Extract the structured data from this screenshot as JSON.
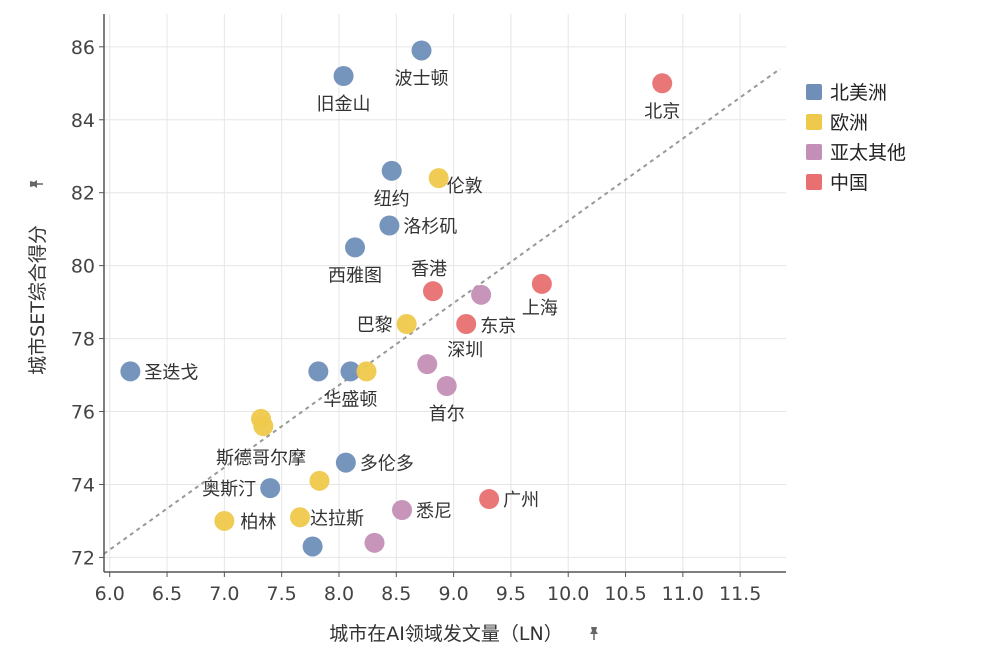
{
  "chart_data": {
    "type": "scatter",
    "xlabel": "城市在AI领域发文量（LN）",
    "ylabel": "城市SET综合得分",
    "xlim": [
      5.95,
      11.9
    ],
    "ylim": [
      71.6,
      86.9
    ],
    "x_ticks": [
      "6.0",
      "6.5",
      "7.0",
      "7.5",
      "8.0",
      "8.5",
      "9.0",
      "9.5",
      "10.0",
      "10.5",
      "11.0",
      "11.5"
    ],
    "x_tick_values": [
      6.0,
      6.5,
      7.0,
      7.5,
      8.0,
      8.5,
      9.0,
      9.5,
      10.0,
      10.5,
      11.0,
      11.5
    ],
    "y_ticks": [
      "72",
      "74",
      "76",
      "78",
      "80",
      "82",
      "84",
      "86"
    ],
    "y_tick_values": [
      72,
      74,
      76,
      78,
      80,
      82,
      84,
      86
    ],
    "grid": true,
    "legend_position": "top-right",
    "trendline": {
      "style": "dashed",
      "color": "#999999",
      "from": [
        5.95,
        72.1
      ],
      "to": [
        11.85,
        85.4
      ]
    },
    "series": [
      {
        "name": "北美洲",
        "color": "#6f8fb8",
        "points": [
          {
            "x": 8.72,
            "y": 85.9,
            "label": "波士顿"
          },
          {
            "x": 8.04,
            "y": 85.2,
            "label": "旧金山"
          },
          {
            "x": 8.46,
            "y": 82.6,
            "label": "纽约"
          },
          {
            "x": 8.44,
            "y": 81.1,
            "label": "洛杉矶"
          },
          {
            "x": 8.14,
            "y": 80.5,
            "label": "西雅图"
          },
          {
            "x": 6.18,
            "y": 77.1,
            "label": "圣迭戈"
          },
          {
            "x": 7.82,
            "y": 77.1,
            "label": ""
          },
          {
            "x": 8.1,
            "y": 77.1,
            "label": "华盛顿"
          },
          {
            "x": 8.06,
            "y": 74.6,
            "label": "多伦多"
          },
          {
            "x": 7.4,
            "y": 73.9,
            "label": "奥斯汀"
          },
          {
            "x": 7.77,
            "y": 72.3,
            "label": ""
          }
        ]
      },
      {
        "name": "欧洲",
        "color": "#efc94c",
        "points": [
          {
            "x": 8.87,
            "y": 82.4,
            "label": "伦敦"
          },
          {
            "x": 8.59,
            "y": 78.4,
            "label": "巴黎"
          },
          {
            "x": 8.24,
            "y": 77.1,
            "label": ""
          },
          {
            "x": 7.32,
            "y": 75.8,
            "label": "斯德哥尔摩"
          },
          {
            "x": 7.34,
            "y": 75.6,
            "label": ""
          },
          {
            "x": 7.83,
            "y": 74.1,
            "label": ""
          },
          {
            "x": 7.0,
            "y": 73.0,
            "label": "柏林"
          },
          {
            "x": 7.66,
            "y": 73.1,
            "label": "达拉斯"
          }
        ]
      },
      {
        "name": "亚太其他",
        "color": "#c48fb6",
        "points": [
          {
            "x": 9.24,
            "y": 79.2,
            "label": ""
          },
          {
            "x": 8.77,
            "y": 77.3,
            "label": "深圳"
          },
          {
            "x": 8.94,
            "y": 76.7,
            "label": "首尔"
          },
          {
            "x": 8.55,
            "y": 73.3,
            "label": "悉尼"
          },
          {
            "x": 8.31,
            "y": 72.4,
            "label": ""
          }
        ]
      },
      {
        "name": "中国",
        "color": "#e87070",
        "points": [
          {
            "x": 10.82,
            "y": 85.0,
            "label": "北京"
          },
          {
            "x": 9.77,
            "y": 79.5,
            "label": "上海"
          },
          {
            "x": 8.82,
            "y": 79.3,
            "label": "香港"
          },
          {
            "x": 9.11,
            "y": 78.4,
            "label": "东京"
          },
          {
            "x": 9.31,
            "y": 73.6,
            "label": "广州"
          }
        ]
      }
    ]
  }
}
